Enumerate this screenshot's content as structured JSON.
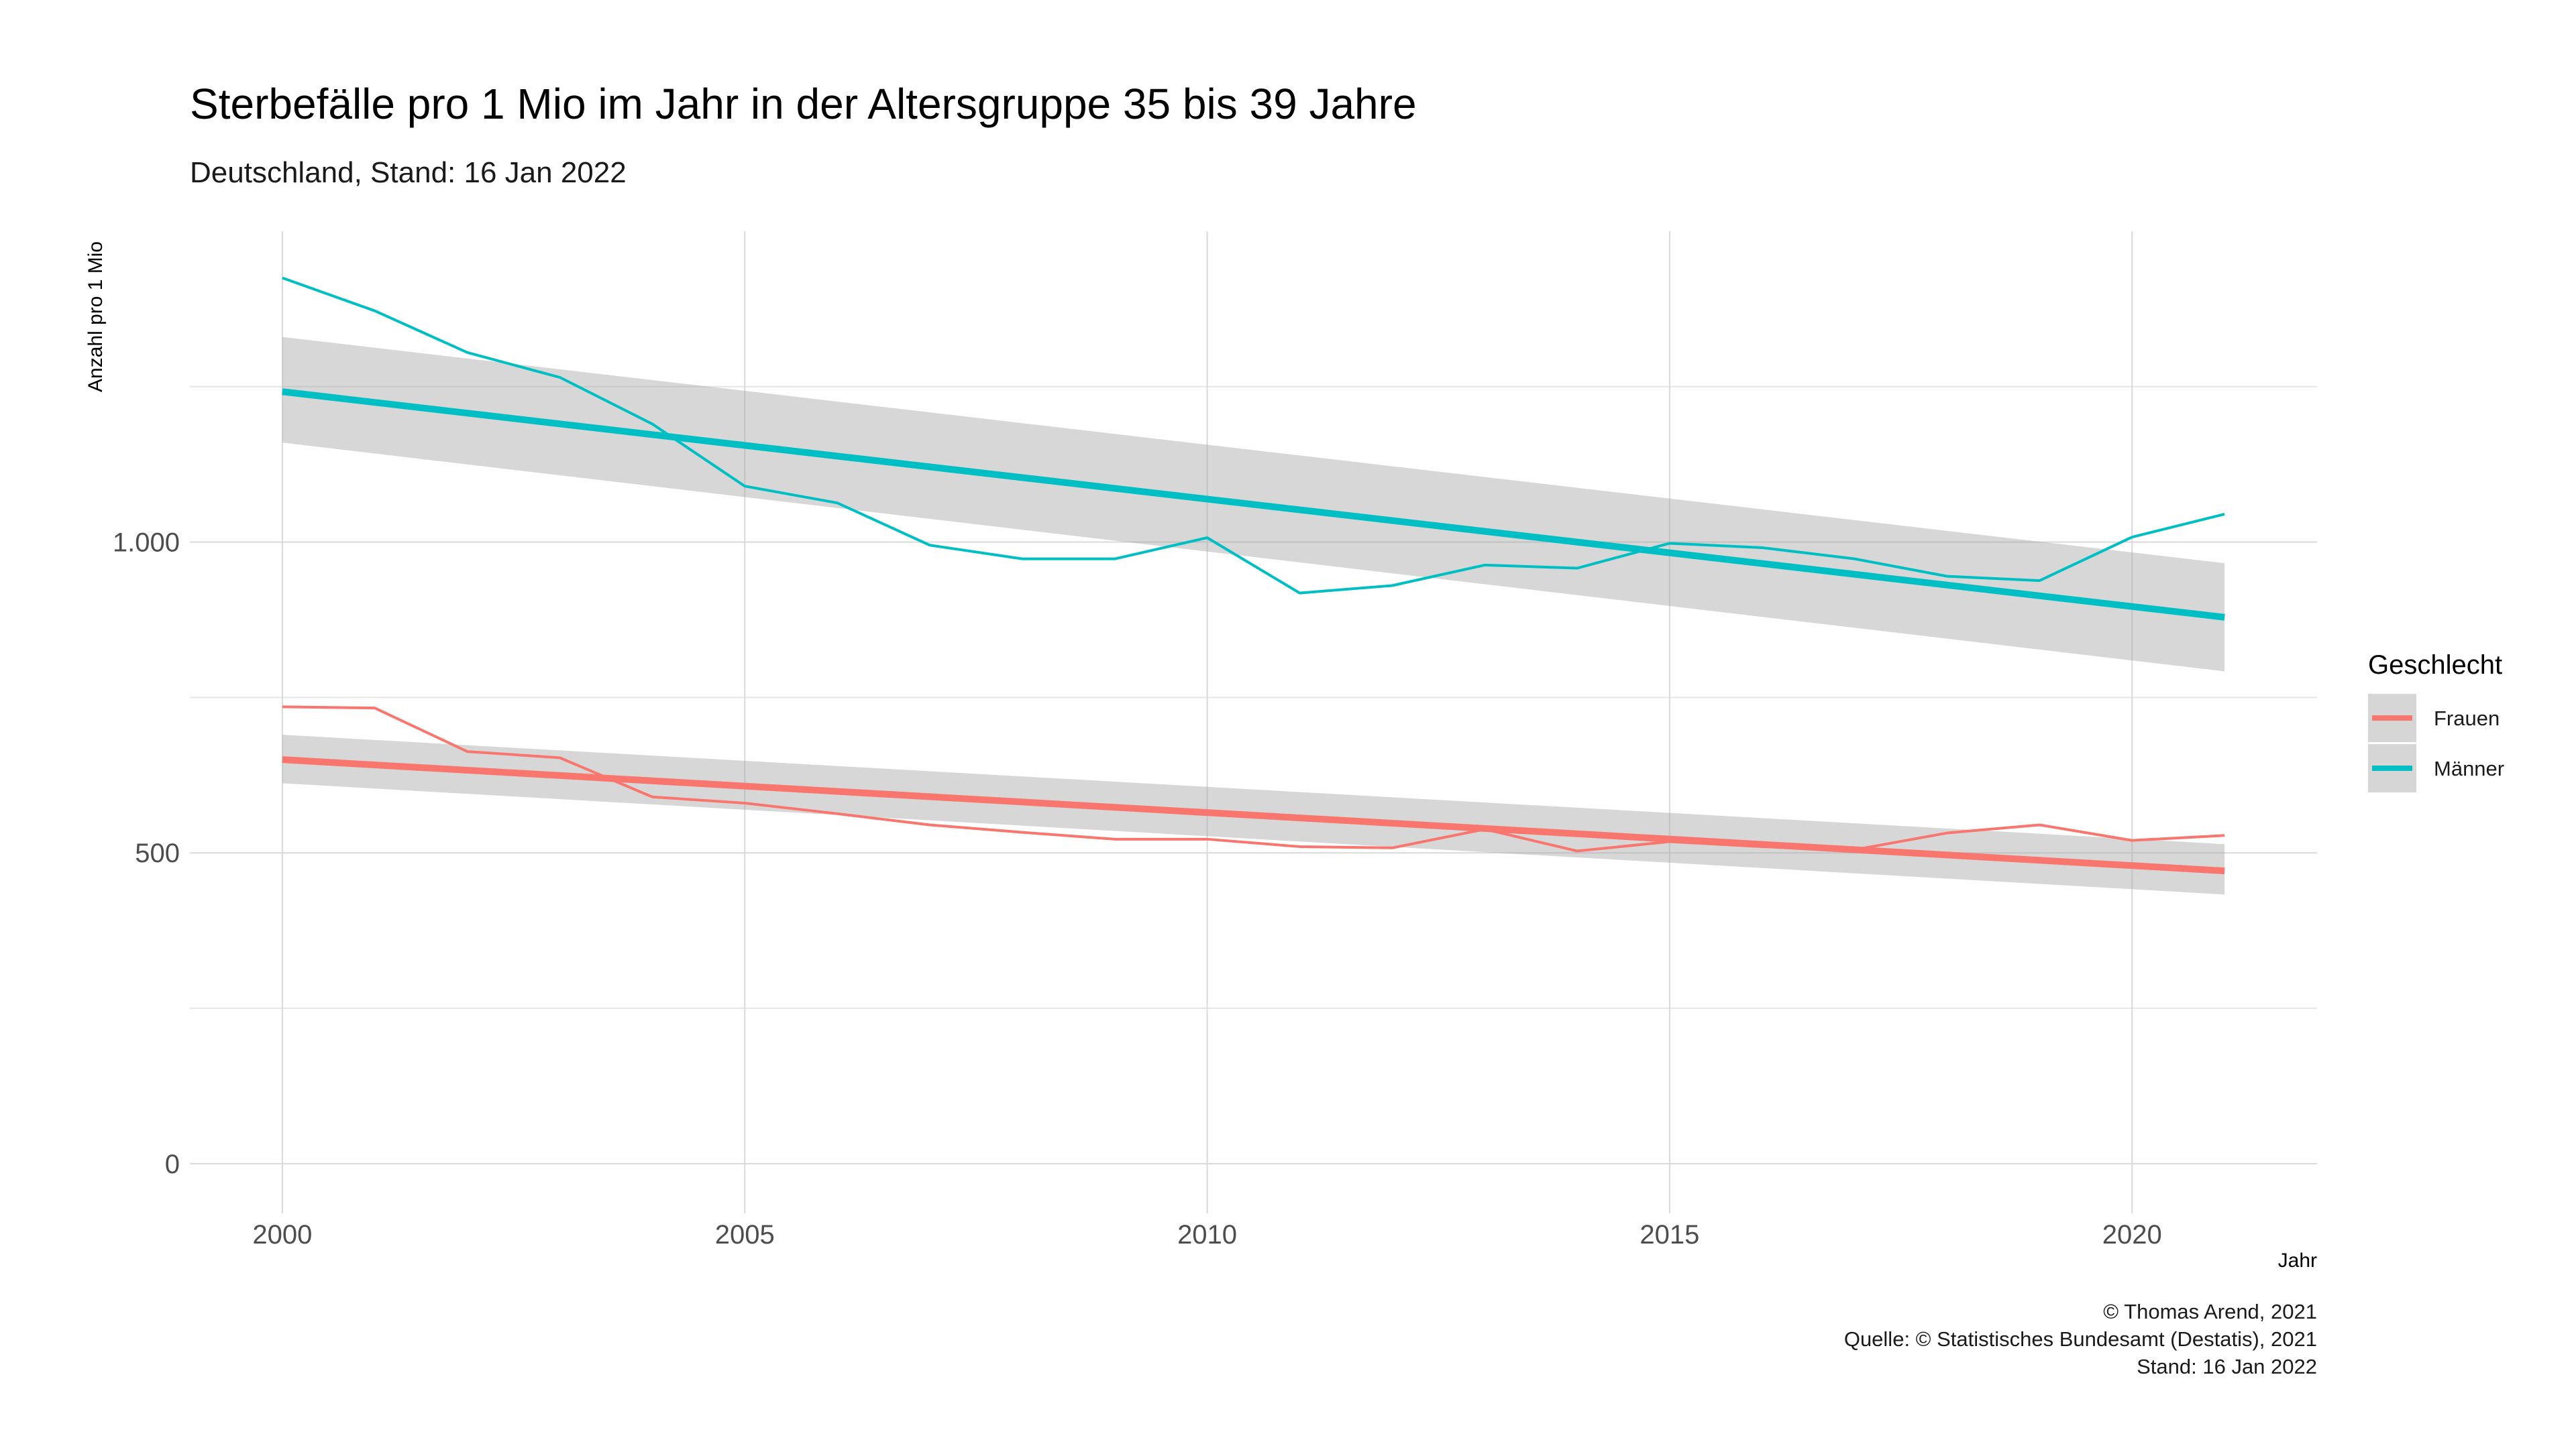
{
  "chart_data": {
    "type": "line",
    "title": "Sterbefälle pro 1 Mio im Jahr in der Altersgruppe 35 bis 39 Jahre",
    "subtitle": "Deutschland, Stand: 16 Jan 2022",
    "xlabel": "Jahr",
    "ylabel": "Anzahl pro 1 Mio",
    "xlim": [
      1999,
      2022
    ],
    "ylim": [
      -80,
      1500
    ],
    "x_ticks": [
      2000,
      2005,
      2010,
      2015,
      2020
    ],
    "x_tick_labels": [
      "2000",
      "2005",
      "2010",
      "2015",
      "2020"
    ],
    "y_ticks": [
      0,
      500,
      1000
    ],
    "y_tick_labels": [
      "0",
      "500",
      "1.000"
    ],
    "y_minor_ticks": [
      250,
      750,
      1250
    ],
    "grid": true,
    "legend": {
      "title": "Geschlecht",
      "position": "right",
      "band_color": "#d6d6d6"
    },
    "series": [
      {
        "name": "Frauen",
        "color": "#f8766d",
        "x": [
          2000,
          2001,
          2002,
          2003,
          2004,
          2005,
          2006,
          2007,
          2008,
          2009,
          2010,
          2011,
          2012,
          2013,
          2014,
          2015,
          2016,
          2017,
          2018,
          2019,
          2020,
          2021
        ],
        "values": [
          735,
          733,
          663,
          653,
          590,
          580,
          563,
          545,
          533,
          522,
          522,
          510,
          508,
          538,
          503,
          518,
          510,
          505,
          532,
          545,
          520,
          528
        ],
        "trend": {
          "x": [
            2000,
            2021
          ],
          "y": [
            650,
            471
          ]
        },
        "confidence_band": {
          "x": [
            2000,
            2021
          ],
          "upper": [
            690,
            514
          ],
          "lower": [
            612,
            433
          ]
        }
      },
      {
        "name": "Männer",
        "color": "#00bfc4",
        "x": [
          2000,
          2001,
          2002,
          2003,
          2004,
          2005,
          2006,
          2007,
          2008,
          2009,
          2010,
          2011,
          2012,
          2013,
          2014,
          2015,
          2016,
          2017,
          2018,
          2019,
          2020,
          2021
        ],
        "values": [
          1425,
          1372,
          1305,
          1265,
          1190,
          1090,
          1063,
          995,
          973,
          973,
          1007,
          918,
          930,
          963,
          958,
          998,
          991,
          973,
          945,
          938,
          1008,
          1045
        ],
        "trend": {
          "x": [
            2000,
            2021
          ],
          "y": [
            1242,
            879
          ]
        },
        "confidence_band": {
          "x": [
            2000,
            2021
          ],
          "upper": [
            1330,
            966
          ],
          "lower": [
            1160,
            792
          ]
        }
      }
    ],
    "caption": [
      "© Thomas Arend, 2021",
      "Quelle: © Statistisches Bundesamt (Destatis), 2021",
      "Stand: 16 Jan 2022"
    ]
  }
}
